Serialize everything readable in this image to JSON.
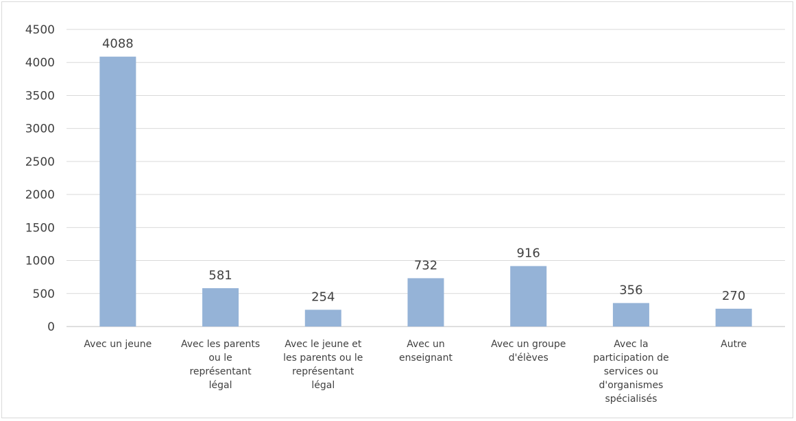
{
  "chart_data": {
    "type": "bar",
    "title": "",
    "xlabel": "",
    "ylabel": "",
    "ylim": [
      0,
      4500
    ],
    "yticks": [
      0,
      500,
      1000,
      1500,
      2000,
      2500,
      3000,
      3500,
      4000,
      4500
    ],
    "grid": true,
    "legend": "none",
    "bar_color": "#95b3d7",
    "categories": [
      [
        "Avec un jeune"
      ],
      [
        "Avec les parents",
        "ou le",
        "représentant",
        "légal"
      ],
      [
        "Avec le jeune et",
        "les parents ou le",
        "représentant",
        "légal"
      ],
      [
        "Avec un",
        "enseignant"
      ],
      [
        "Avec un groupe",
        "d'élèves"
      ],
      [
        "Avec la",
        "participation de",
        "services ou",
        "d'organismes",
        "spécialisés"
      ],
      [
        "Autre"
      ]
    ],
    "values": [
      4088,
      581,
      254,
      732,
      916,
      356,
      270
    ]
  }
}
